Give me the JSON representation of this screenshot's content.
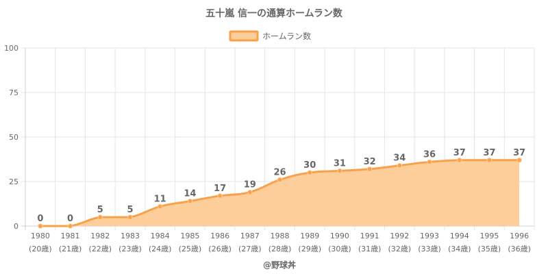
{
  "chart_data": {
    "type": "area",
    "title": "五十嵐 信一の通算ホームラン数",
    "categories": [
      "1980",
      "1981",
      "1982",
      "1983",
      "1984",
      "1985",
      "1986",
      "1987",
      "1988",
      "1989",
      "1990",
      "1991",
      "1992",
      "1993",
      "1994",
      "1995",
      "1996"
    ],
    "age_labels": [
      "(20歳)",
      "(21歳)",
      "(22歳)",
      "(23歳)",
      "(24歳)",
      "(25歳)",
      "(26歳)",
      "(27歳)",
      "(28歳)",
      "(29歳)",
      "(30歳)",
      "(31歳)",
      "(32歳)",
      "(33歳)",
      "(34歳)",
      "(35歳)",
      "(36歳)"
    ],
    "series": [
      {
        "name": "ホームラン数",
        "values": [
          0,
          0,
          5,
          5,
          11,
          14,
          17,
          19,
          26,
          30,
          31,
          32,
          34,
          36,
          37,
          37,
          37
        ],
        "line_color": "#f7a14b",
        "fill_color": "#fdcd9a"
      }
    ],
    "ylim": [
      0,
      100
    ],
    "yticks": [
      0,
      25,
      50,
      75,
      100
    ],
    "grid": true,
    "legend_position": "top-center",
    "data_labels": true
  },
  "credit": "@野球丼"
}
